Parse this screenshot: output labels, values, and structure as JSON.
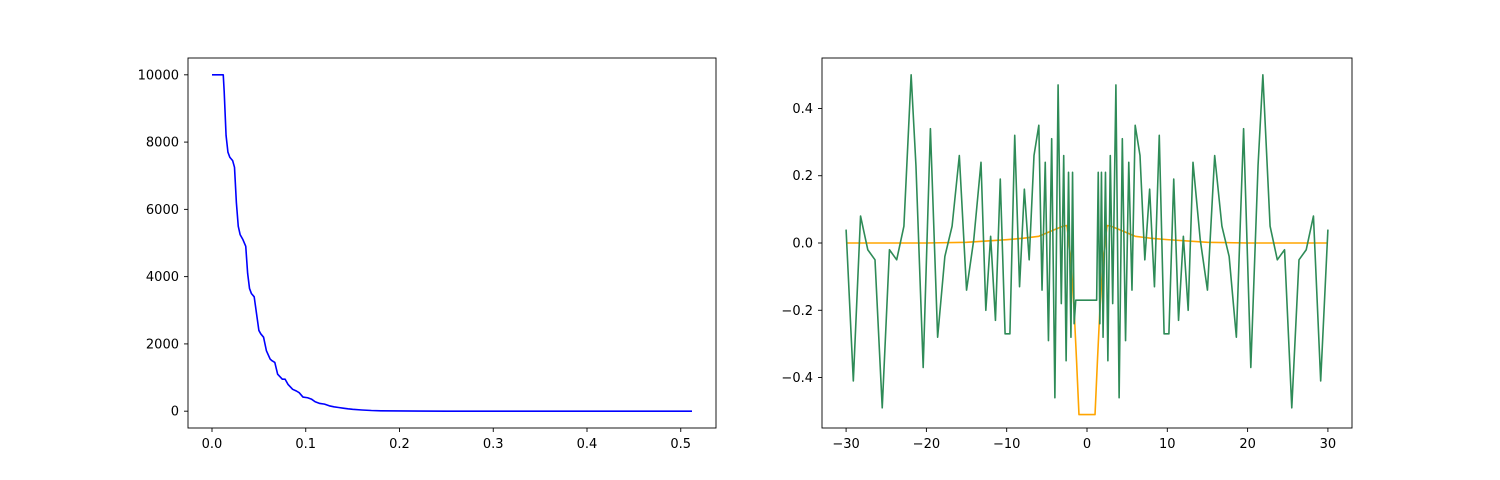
{
  "chart_data": [
    {
      "type": "line",
      "title": "",
      "xlabel": "",
      "ylabel": "",
      "xlim": [
        -0.0256,
        0.5376
      ],
      "ylim": [
        -500,
        10500
      ],
      "grid": false,
      "xticks": [
        0.0,
        0.1,
        0.2,
        0.3,
        0.4,
        0.5
      ],
      "xtick_labels": [
        "0.0",
        "0.1",
        "0.2",
        "0.3",
        "0.4",
        "0.5"
      ],
      "yticks": [
        0,
        2000,
        4000,
        6000,
        8000,
        10000
      ],
      "ytick_labels": [
        "0",
        "2000",
        "4000",
        "6000",
        "8000",
        "10000"
      ],
      "series": [
        {
          "color": "#0000ff",
          "x": [
            0.0,
            0.012,
            0.013,
            0.015,
            0.017,
            0.019,
            0.022,
            0.024,
            0.026,
            0.028,
            0.03,
            0.033,
            0.036,
            0.038,
            0.04,
            0.042,
            0.045,
            0.048,
            0.05,
            0.052,
            0.055,
            0.058,
            0.062,
            0.064,
            0.067,
            0.07,
            0.075,
            0.078,
            0.081,
            0.086,
            0.09,
            0.093,
            0.097,
            0.102,
            0.106,
            0.11,
            0.115,
            0.12,
            0.125,
            0.13,
            0.135,
            0.14,
            0.145,
            0.15,
            0.16,
            0.17,
            0.18,
            0.2,
            0.22,
            0.25,
            0.3,
            0.35,
            0.4,
            0.45,
            0.512
          ],
          "y": [
            10000,
            10000,
            9500,
            8200,
            7700,
            7550,
            7450,
            7250,
            6200,
            5500,
            5250,
            5100,
            4900,
            4100,
            3650,
            3500,
            3400,
            2800,
            2400,
            2300,
            2200,
            1800,
            1550,
            1500,
            1450,
            1100,
            950,
            950,
            800,
            650,
            600,
            550,
            420,
            400,
            360,
            280,
            230,
            210,
            160,
            130,
            110,
            90,
            70,
            55,
            35,
            20,
            12,
            6,
            3,
            1,
            0,
            0,
            0,
            0,
            0
          ]
        }
      ]
    },
    {
      "type": "line",
      "title": "",
      "xlabel": "",
      "ylabel": "",
      "xlim": [
        -33,
        33
      ],
      "ylim": [
        -0.55,
        0.55
      ],
      "grid": false,
      "xticks": [
        -30,
        -20,
        -10,
        0,
        10,
        20,
        30
      ],
      "xtick_labels": [
        "−30",
        "−20",
        "−10",
        "0",
        "10",
        "20",
        "30"
      ],
      "yticks": [
        -0.4,
        -0.2,
        0.0,
        0.2,
        0.4
      ],
      "ytick_labels": [
        "−0.4",
        "−0.2",
        "0.0",
        "0.2",
        "0.4"
      ],
      "series": [
        {
          "color": "#ffa500",
          "x": [
            -30,
            -25,
            -20,
            -15,
            -10,
            -8,
            -6,
            -5,
            -4,
            -3,
            -2.5,
            -2,
            -1.6,
            -1.3,
            -1,
            1,
            1.3,
            1.6,
            2,
            2.5,
            3,
            4,
            5,
            6,
            8,
            10,
            15,
            20,
            25,
            30
          ],
          "y": [
            0.0,
            0.0,
            0.0,
            0.002,
            0.01,
            0.014,
            0.02,
            0.03,
            0.04,
            0.05,
            0.052,
            -0.05,
            -0.2,
            -0.35,
            -0.51,
            -0.51,
            -0.35,
            -0.2,
            -0.05,
            0.052,
            0.05,
            0.04,
            0.03,
            0.02,
            0.014,
            0.01,
            0.002,
            0.0,
            0.0,
            0.0
          ]
        },
        {
          "color": "#2e8b57",
          "x": [
            -30,
            -29.1,
            -28.2,
            -27.3,
            -26.4,
            -25.5,
            -24.6,
            -23.7,
            -22.8,
            -21.9,
            -21.3,
            -20.4,
            -19.5,
            -18.6,
            -17.7,
            -16.8,
            -15.9,
            -15.0,
            -14.1,
            -13.2,
            -12.6,
            -12.0,
            -11.4,
            -10.8,
            -10.2,
            -9.6,
            -9.0,
            -8.4,
            -7.8,
            -7.2,
            -6.6,
            -6.0,
            -5.6,
            -5.2,
            -4.8,
            -4.4,
            -4.0,
            -3.6,
            -3.2,
            -2.9,
            -2.6,
            -2.3,
            -2.0,
            -1.8,
            -1.6,
            -1.4,
            -1.2,
            -1.0,
            -0.8,
            0,
            0.8,
            1.0,
            1.2,
            1.4,
            1.6,
            1.8,
            2.0,
            2.3,
            2.6,
            2.9,
            3.2,
            3.6,
            4.0,
            4.4,
            4.8,
            5.2,
            5.6,
            6.0,
            6.6,
            7.2,
            7.8,
            8.4,
            9.0,
            9.6,
            10.2,
            10.8,
            11.4,
            12.0,
            12.6,
            13.2,
            14.1,
            15.0,
            15.9,
            16.8,
            17.7,
            18.6,
            19.5,
            20.4,
            21.3,
            21.9,
            22.8,
            23.7,
            24.6,
            25.5,
            26.4,
            27.3,
            28.2,
            29.1,
            30
          ],
          "y": [
            0.04,
            -0.41,
            0.08,
            -0.02,
            -0.05,
            -0.49,
            -0.02,
            -0.05,
            0.05,
            0.5,
            0.23,
            -0.37,
            0.34,
            -0.28,
            -0.04,
            0.05,
            0.26,
            -0.14,
            0.01,
            0.24,
            -0.2,
            0.02,
            -0.23,
            0.19,
            -0.27,
            -0.27,
            0.32,
            -0.13,
            0.16,
            -0.05,
            0.26,
            0.35,
            -0.14,
            0.24,
            -0.29,
            0.31,
            -0.46,
            0.47,
            -0.18,
            0.26,
            -0.35,
            0.21,
            -0.28,
            0.21,
            -0.24,
            -0.17,
            -0.17,
            -0.17,
            -0.17,
            -0.17,
            -0.17,
            -0.17,
            -0.17,
            0.21,
            -0.24,
            0.21,
            -0.28,
            0.21,
            -0.35,
            0.26,
            -0.18,
            0.47,
            -0.46,
            0.31,
            -0.29,
            0.24,
            -0.14,
            0.35,
            0.26,
            -0.05,
            0.16,
            -0.13,
            0.32,
            -0.27,
            -0.27,
            0.19,
            -0.23,
            0.02,
            -0.2,
            0.24,
            0.01,
            -0.14,
            0.26,
            0.05,
            -0.04,
            -0.28,
            0.34,
            -0.37,
            0.23,
            0.5,
            0.05,
            -0.05,
            -0.02,
            -0.49,
            -0.05,
            -0.02,
            0.08,
            -0.41,
            0.04
          ]
        }
      ]
    }
  ]
}
